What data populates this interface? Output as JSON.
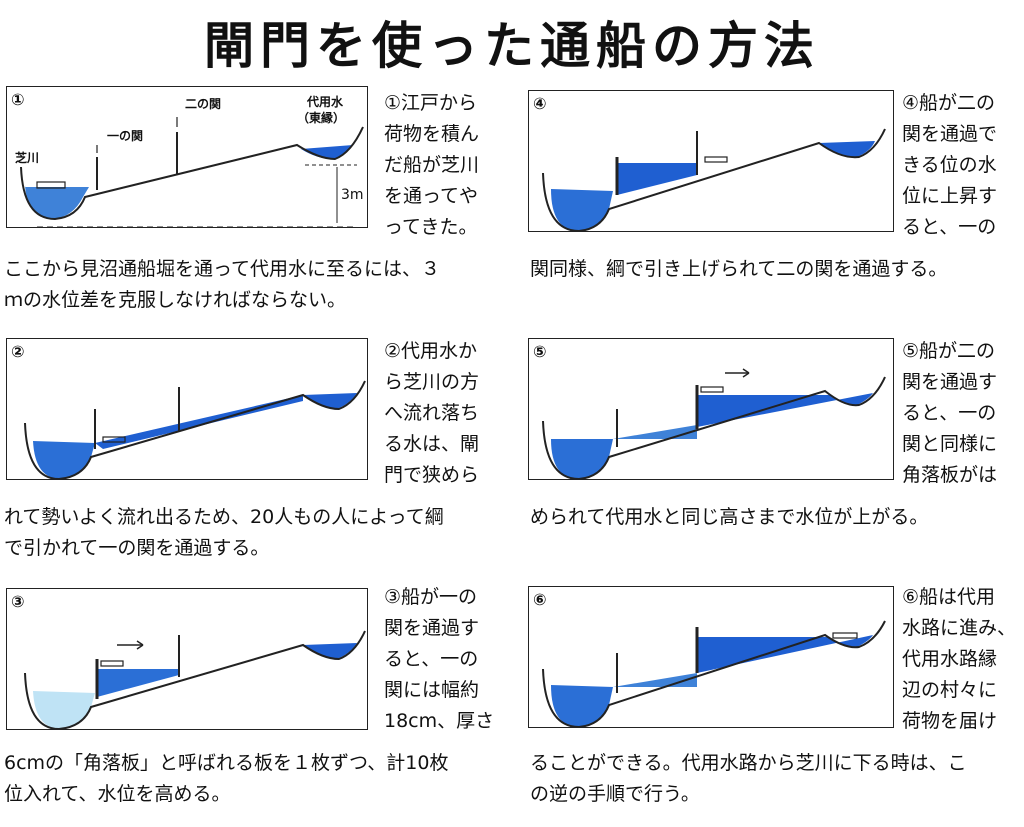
{
  "title": "閘門を使った通船の方法",
  "colors": {
    "water": "#1f5fd1",
    "water_light": "#4a8ee0",
    "ink": "#222222"
  },
  "panels": [
    {
      "num": "①",
      "side_lines": [
        "①江戸から",
        "荷物を積ん",
        "だ船が芝川",
        "を通ってや",
        "ってきた。"
      ],
      "foot_lines": [
        "ここから見沼通船堀を通って代用水に至るには、３",
        "ｍの水位差を克服しなければならない。"
      ],
      "labels": {
        "shiba": "芝川",
        "ichi": "一の関",
        "ni": "二の関",
        "daiyo": "代用水",
        "east": "（東縁）",
        "height": "3m"
      }
    },
    {
      "num": "④",
      "side_lines": [
        "④船が二の",
        "関を通過で",
        "きる位の水",
        "位に上昇す",
        "ると、一の"
      ],
      "foot_lines": [
        "関同様、綱で引き上げられて二の関を通過する。"
      ]
    },
    {
      "num": "②",
      "side_lines": [
        "②代用水か",
        "ら芝川の方",
        "へ流れ落ち",
        "る水は、閘",
        "門で狭めら"
      ],
      "foot_lines": [
        "れて勢いよく流れ出るため、20人もの人によって綱",
        "で引かれて一の関を通過する。"
      ]
    },
    {
      "num": "⑤",
      "side_lines": [
        "⑤船が二の",
        "関を通過す",
        "ると、一の",
        "関と同様に",
        "角落板がは"
      ],
      "foot_lines": [
        "められて代用水と同じ高さまで水位が上がる。"
      ]
    },
    {
      "num": "③",
      "side_lines": [
        "③船が一の",
        "関を通過す",
        "ると、一の",
        "関には幅約",
        "18cm、厚さ"
      ],
      "foot_lines": [
        "6cmの「角落板」と呼ばれる板を１枚ずつ、計10枚",
        "位入れて、水位を高める。"
      ]
    },
    {
      "num": "⑥",
      "side_lines": [
        "⑥船は代用",
        "水路に進み、",
        "代用水路縁",
        "辺の村々に",
        "荷物を届け"
      ],
      "foot_lines": [
        "ることができる。代用水路から芝川に下る時は、こ",
        "の逆の手順で行う。"
      ]
    }
  ]
}
